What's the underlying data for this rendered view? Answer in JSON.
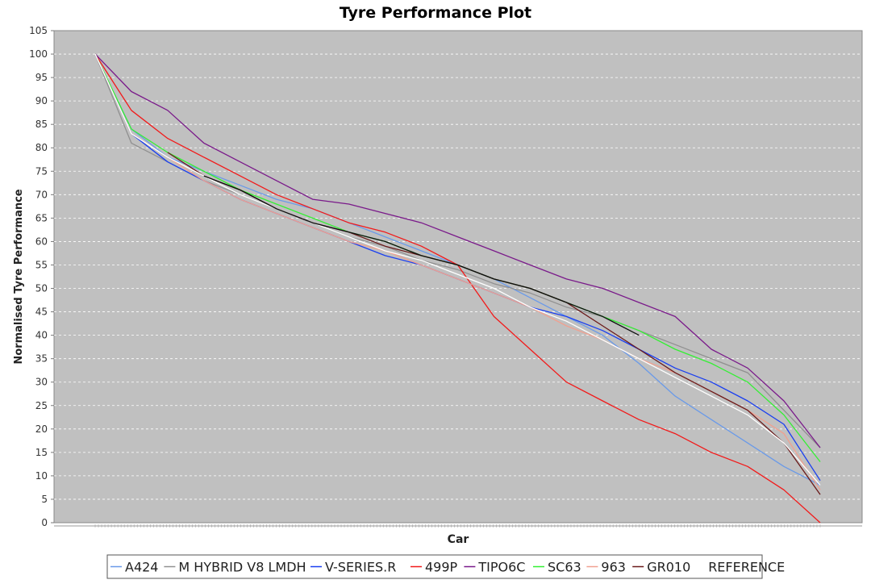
{
  "chart_data": {
    "type": "line",
    "title": "Tyre Performance Plot",
    "xlabel": "Car",
    "ylabel": "Normalised Tyre Performance",
    "ylim": [
      0,
      105
    ],
    "yticks": [
      0,
      5,
      10,
      15,
      20,
      25,
      30,
      35,
      40,
      45,
      50,
      55,
      60,
      65,
      70,
      75,
      80,
      85,
      90,
      95,
      100,
      105
    ],
    "grid": true,
    "legend_position": "bottom",
    "background_color": "#c0c0c0",
    "x": [
      0,
      0.05,
      0.1,
      0.15,
      0.2,
      0.25,
      0.3,
      0.35,
      0.4,
      0.45,
      0.5,
      0.55,
      0.6,
      0.65,
      0.7,
      0.75,
      0.8,
      0.85,
      0.9,
      0.95,
      1.0
    ],
    "series": [
      {
        "name": "A424",
        "color": "#6a9ae8",
        "values": [
          100,
          84,
          78,
          75,
          72,
          69,
          67,
          64,
          61,
          58,
          55,
          52,
          48,
          44,
          40,
          34,
          27,
          22,
          17,
          12,
          8
        ]
      },
      {
        "name": "M HYBRID V8 LMDH",
        "color": "#909090",
        "values": [
          100,
          81,
          77,
          73,
          70,
          67,
          64,
          61,
          59,
          56,
          54,
          51,
          49,
          46,
          44,
          41,
          38,
          35,
          32,
          24,
          16
        ]
      },
      {
        "name": "V-SERIES.R",
        "color": "#1a3ff0",
        "values": [
          100,
          83,
          77,
          73,
          69,
          66,
          63,
          60,
          57,
          55,
          52,
          49,
          46,
          44,
          41,
          37,
          33,
          30,
          26,
          21,
          9
        ]
      },
      {
        "name": "499P",
        "color": "#f21a1a",
        "values": [
          100,
          88,
          82,
          78,
          74,
          70,
          67,
          64,
          62,
          59,
          55,
          44,
          37,
          30,
          26,
          22,
          19,
          15,
          12,
          7,
          0
        ]
      },
      {
        "name": "TIPO6C",
        "color": "#7a1a8a",
        "values": [
          100,
          92,
          88,
          81,
          77,
          73,
          69,
          68,
          66,
          64,
          61,
          58,
          55,
          52,
          50,
          47,
          44,
          37,
          33,
          26,
          16
        ]
      },
      {
        "name": "SC63",
        "color": "#33f033",
        "values": [
          100,
          84,
          79,
          75,
          71,
          68,
          65,
          62,
          60,
          57,
          55,
          52,
          50,
          47,
          44,
          41,
          37,
          34,
          30,
          23,
          13
        ]
      },
      {
        "name": "963",
        "color": "#f0a090",
        "values": [
          100,
          83,
          78,
          73,
          69,
          66,
          63,
          60,
          58,
          55,
          52,
          49,
          46,
          42,
          39,
          35,
          32,
          28,
          24,
          19,
          7
        ]
      },
      {
        "name": "GR010",
        "color": "#6a1a1a",
        "values": [
          null,
          null,
          79,
          74,
          71,
          67,
          64,
          62,
          59,
          57,
          55,
          52,
          50,
          47,
          42,
          37,
          32,
          28,
          24,
          17,
          6
        ]
      },
      {
        "name": "REFERENCE",
        "color": "#ffffff",
        "values": [
          100,
          83,
          78,
          74,
          70,
          67,
          64,
          61,
          58,
          56,
          53,
          50,
          46,
          43,
          39,
          35,
          31,
          27,
          23,
          17,
          8
        ]
      },
      {
        "name": "",
        "color": "#101010",
        "values": [
          null,
          null,
          null,
          74,
          71,
          67,
          64,
          62,
          60,
          57,
          55,
          52,
          50,
          47,
          44,
          40,
          null,
          null,
          null,
          null,
          null
        ]
      }
    ]
  }
}
